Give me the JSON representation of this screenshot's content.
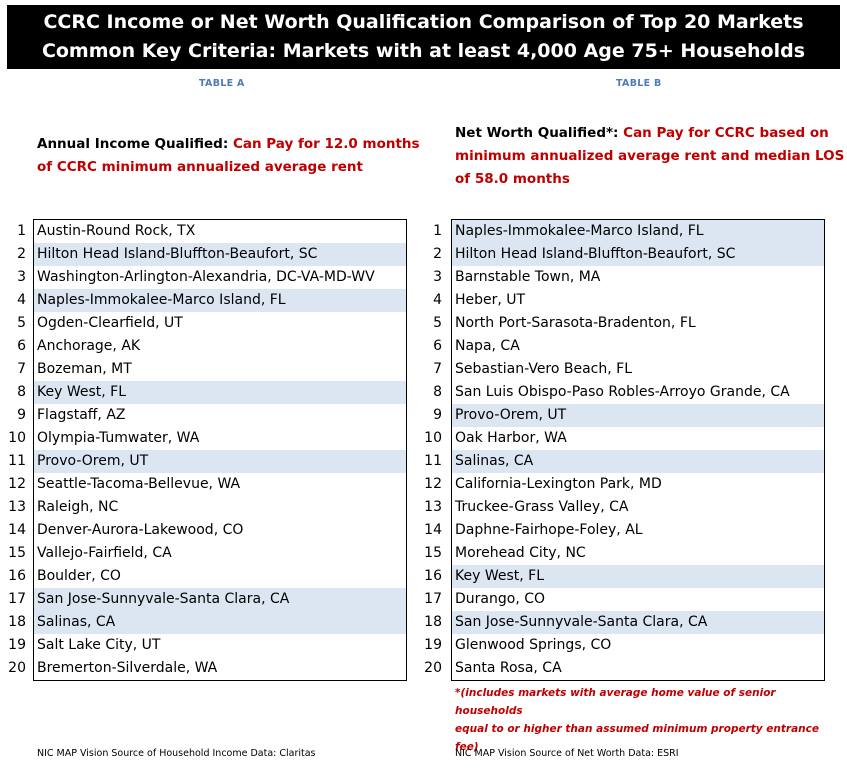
{
  "header": {
    "line1": "CCRC Income or Net Worth Qualification Comparison of Top 20 Markets",
    "line2": "Common Key Criteria: Markets with at least 4,000 Age 75+ Households"
  },
  "tableA": {
    "label": "TABLE A",
    "subhead_bold": "Annual Income Qualified: ",
    "subhead_red_line1": "Can Pay for 12.0 months",
    "subhead_red_line2": "of CCRC minimum annualized average rent",
    "ranks": [
      "1",
      "2",
      "3",
      "4",
      "5",
      "6",
      "7",
      "8",
      "9",
      "10",
      "11",
      "12",
      "13",
      "14",
      "15",
      "16",
      "17",
      "18",
      "19",
      "20"
    ],
    "markets": [
      {
        "name": "Austin-Round Rock, TX",
        "highlight": false
      },
      {
        "name": "Hilton Head Island-Bluffton-Beaufort, SC",
        "highlight": true
      },
      {
        "name": "Washington-Arlington-Alexandria, DC-VA-MD-WV",
        "highlight": false
      },
      {
        "name": "Naples-Immokalee-Marco Island, FL",
        "highlight": true
      },
      {
        "name": "Ogden-Clearfield, UT",
        "highlight": false
      },
      {
        "name": "Anchorage, AK",
        "highlight": false
      },
      {
        "name": "Bozeman, MT",
        "highlight": false
      },
      {
        "name": "Key West, FL",
        "highlight": true
      },
      {
        "name": "Flagstaff, AZ",
        "highlight": false
      },
      {
        "name": "Olympia-Tumwater, WA",
        "highlight": false
      },
      {
        "name": "Provo-Orem, UT",
        "highlight": true
      },
      {
        "name": "Seattle-Tacoma-Bellevue, WA",
        "highlight": false
      },
      {
        "name": "Raleigh, NC",
        "highlight": false
      },
      {
        "name": "Denver-Aurora-Lakewood, CO",
        "highlight": false
      },
      {
        "name": "Vallejo-Fairfield, CA",
        "highlight": false
      },
      {
        "name": "Boulder, CO",
        "highlight": false
      },
      {
        "name": "San Jose-Sunnyvale-Santa Clara, CA",
        "highlight": true
      },
      {
        "name": "Salinas, CA",
        "highlight": true
      },
      {
        "name": "Salt Lake City, UT",
        "highlight": false
      },
      {
        "name": "Bremerton-Silverdale, WA",
        "highlight": false
      }
    ],
    "source": "NIC MAP Vision Source of Household Income Data: Claritas"
  },
  "tableB": {
    "label": "TABLE B",
    "subhead_bold": "Net Worth Qualified*: ",
    "subhead_red_line1": "Can Pay for CCRC based on",
    "subhead_red_line2": "minimum annualized average rent and median LOS",
    "subhead_red_line3": "of 58.0 months",
    "ranks": [
      "1",
      "2",
      "3",
      "4",
      "5",
      "6",
      "7",
      "8",
      "9",
      "10",
      "11",
      "12",
      "13",
      "14",
      "15",
      "16",
      "17",
      "18",
      "19",
      "20"
    ],
    "markets": [
      {
        "name": "Naples-Immokalee-Marco Island, FL",
        "highlight": true
      },
      {
        "name": "Hilton Head Island-Bluffton-Beaufort, SC",
        "highlight": true
      },
      {
        "name": "Barnstable Town, MA",
        "highlight": false
      },
      {
        "name": "Heber, UT",
        "highlight": false
      },
      {
        "name": "North Port-Sarasota-Bradenton, FL",
        "highlight": false
      },
      {
        "name": "Napa, CA",
        "highlight": false
      },
      {
        "name": "Sebastian-Vero Beach, FL",
        "highlight": false
      },
      {
        "name": "San Luis Obispo-Paso Robles-Arroyo Grande, CA",
        "highlight": false
      },
      {
        "name": "Provo-Orem, UT",
        "highlight": true
      },
      {
        "name": "Oak Harbor, WA",
        "highlight": false
      },
      {
        "name": "Salinas, CA",
        "highlight": true
      },
      {
        "name": "California-Lexington Park, MD",
        "highlight": false
      },
      {
        "name": "Truckee-Grass Valley, CA",
        "highlight": false
      },
      {
        "name": "Daphne-Fairhope-Foley, AL",
        "highlight": false
      },
      {
        "name": "Morehead City, NC",
        "highlight": false
      },
      {
        "name": "Key West, FL",
        "highlight": true
      },
      {
        "name": "Durango, CO",
        "highlight": false
      },
      {
        "name": "San Jose-Sunnyvale-Santa Clara, CA",
        "highlight": true
      },
      {
        "name": "Glenwood Springs, CO",
        "highlight": false
      },
      {
        "name": "Santa Rosa, CA",
        "highlight": false
      }
    ],
    "footnote_line1": "*(includes markets with average home value of senior households",
    "footnote_line2": "equal to or higher than assumed minimum property entrance fee)",
    "source": "NIC MAP Vision Source of Net Worth Data: ESRI"
  },
  "colors": {
    "highlight": "#dce6f2",
    "red": "#c00000",
    "label_blue": "#4f7bbd"
  }
}
